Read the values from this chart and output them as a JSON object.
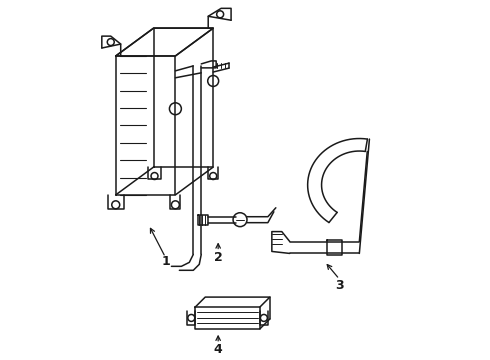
{
  "background_color": "#ffffff",
  "line_color": "#1a1a1a",
  "line_width": 1.1,
  "fig_width": 4.9,
  "fig_height": 3.6,
  "dpi": 100
}
